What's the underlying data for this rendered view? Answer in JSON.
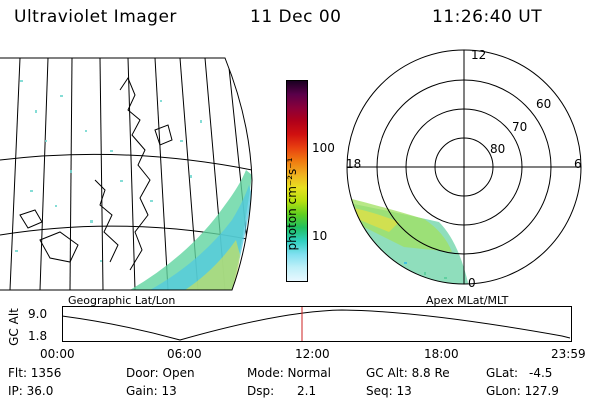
{
  "header": {
    "title": "Ultraviolet Imager",
    "date": "11 Dec 00",
    "time": "11:26:40 UT"
  },
  "colorbar": {
    "unit_label": "photon cm⁻²s⁻¹",
    "ticks": [
      "100",
      "10"
    ],
    "colors": [
      "#1a0022",
      "#5a004a",
      "#8a003a",
      "#b0001a",
      "#d01010",
      "#e84010",
      "#f07a10",
      "#f0b020",
      "#e8e020",
      "#b8e010",
      "#60d020",
      "#20c060",
      "#30d0c0",
      "#80e0f0",
      "#c0f0f8",
      "#e8f8ff"
    ]
  },
  "geo_panel": {
    "label": "Geographic Lat/Lon"
  },
  "polar_panel": {
    "label": "Apex MLat/MLT",
    "mlt_labels": [
      "12",
      "18",
      "6",
      "0"
    ],
    "lat_labels": [
      "60",
      "70",
      "80"
    ]
  },
  "altitude_plot": {
    "ylabel": "GC Alt",
    "y_ticks": [
      "9.0",
      "1.8"
    ],
    "x_ticks": [
      "00:00",
      "06:00",
      "12:00",
      "18:00",
      "23:59"
    ],
    "marker_color": "#cc2222"
  },
  "info": {
    "flt": "Flt: 1356",
    "ip": "IP: 36.0",
    "door": "Door: Open",
    "gain": "Gain: 13",
    "mode": "Mode: Normal",
    "dsp": "Dsp:",
    "dsp_val": "2.1",
    "gcalt": "GC Alt: 8.8 Re",
    "seq": "Seq: 13",
    "glat": "GLat:",
    "glat_val": "-4.5",
    "glon": "GLon: 127.9"
  }
}
